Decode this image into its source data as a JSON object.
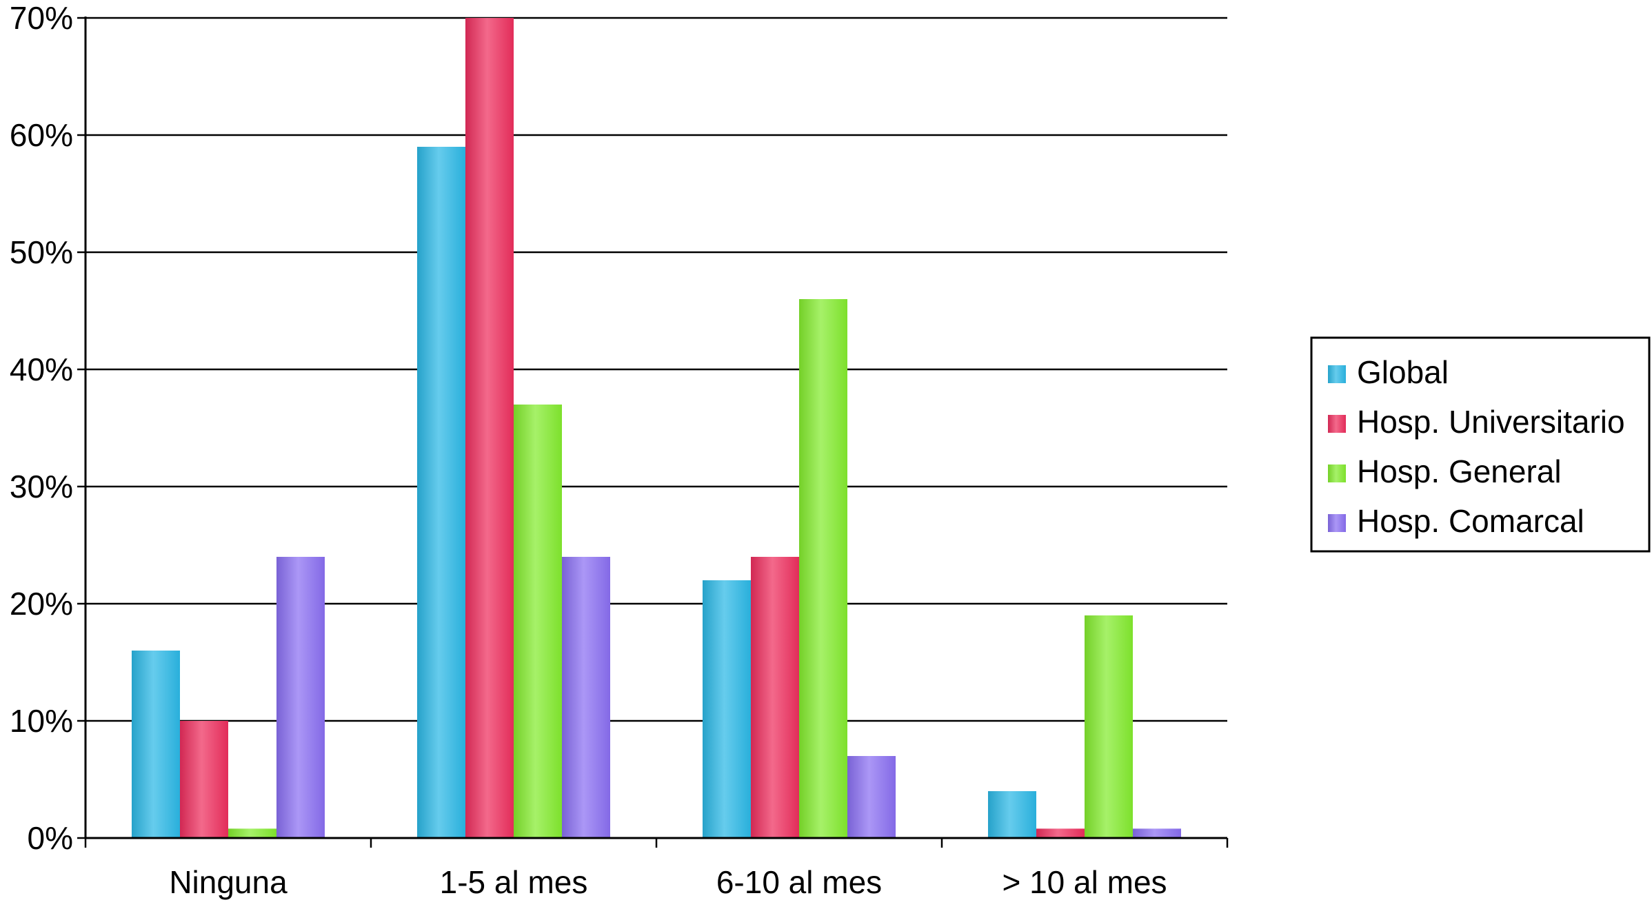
{
  "chart_data": {
    "type": "bar",
    "categories": [
      "Ninguna",
      "1-5 al mes",
      "6-10 al mes",
      "> 10 al mes"
    ],
    "series": [
      {
        "name": "Global",
        "values": [
          16,
          59,
          22,
          4
        ],
        "color": "#2BB8E6"
      },
      {
        "name": "Hosp. Universitario",
        "values": [
          10,
          70,
          24,
          0.8
        ],
        "color": "#EE2E5E"
      },
      {
        "name": "Hosp. General",
        "values": [
          0.8,
          37,
          46,
          19
        ],
        "color": "#84EC2E"
      },
      {
        "name": "Hosp. Comarcal",
        "values": [
          24,
          24,
          7,
          0.8
        ],
        "color": "#8A6FF2"
      }
    ],
    "yticks": [
      "0%",
      "10%",
      "20%",
      "30%",
      "40%",
      "50%",
      "60%",
      "70%"
    ],
    "ylim": [
      0,
      70
    ],
    "y_unit": "percent",
    "grid": true,
    "legend_position": "right",
    "title": "",
    "xlabel": "",
    "ylabel": ""
  }
}
